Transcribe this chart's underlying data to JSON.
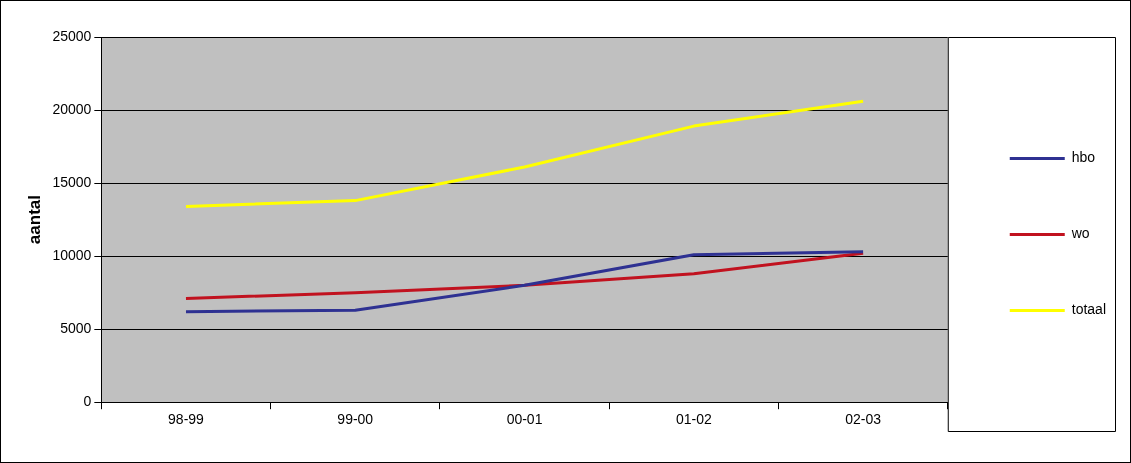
{
  "chart_data": {
    "type": "line",
    "ylabel": "aantal",
    "categories": [
      "98-99",
      "99-00",
      "00-01",
      "01-02",
      "02-03"
    ],
    "series": [
      {
        "name": "hbo",
        "color": "#2e3192",
        "values": [
          6200,
          6300,
          8000,
          10100,
          10300
        ]
      },
      {
        "name": "wo",
        "color": "#c1121f",
        "values": [
          7100,
          7500,
          8000,
          8800,
          10200
        ]
      },
      {
        "name": "totaal",
        "color": "#ffff00",
        "values": [
          13400,
          13800,
          16100,
          18900,
          20600
        ]
      }
    ],
    "ylim": [
      0,
      25000
    ],
    "yticks": [
      0,
      5000,
      10000,
      15000,
      20000,
      25000
    ],
    "grid": "y",
    "legend": "right",
    "marker": "none",
    "line_style": "solid"
  }
}
